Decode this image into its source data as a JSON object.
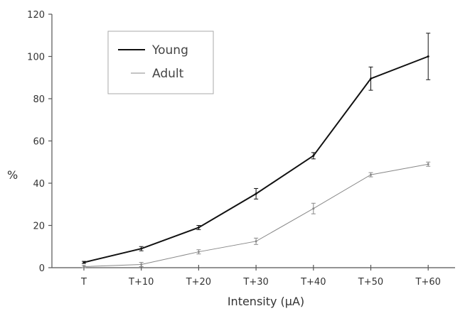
{
  "chart_data": {
    "type": "line",
    "categories": [
      "T",
      "T+10",
      "T+20",
      "T+30",
      "T+40",
      "T+50",
      "T+60"
    ],
    "xlabel": "Intensity (μA)",
    "ylabel": "%",
    "ylim": [
      0,
      120
    ],
    "yticks": [
      "0",
      "20",
      "40",
      "60",
      "80",
      "100",
      "120"
    ],
    "grid": false,
    "legend_position": "top-left",
    "series": [
      {
        "name": "Young",
        "color": "#111111",
        "values": [
          2.5,
          9,
          19,
          35,
          53,
          89.5,
          100
        ],
        "errors": [
          0.5,
          1,
          1,
          2.5,
          1.5,
          5.5,
          11
        ]
      },
      {
        "name": "Adult",
        "color": "#888888",
        "values": [
          0.5,
          1.5,
          7.5,
          12.5,
          28,
          44,
          49
        ],
        "errors": [
          0.5,
          1,
          1,
          1.5,
          2.5,
          1,
          1
        ]
      }
    ]
  }
}
